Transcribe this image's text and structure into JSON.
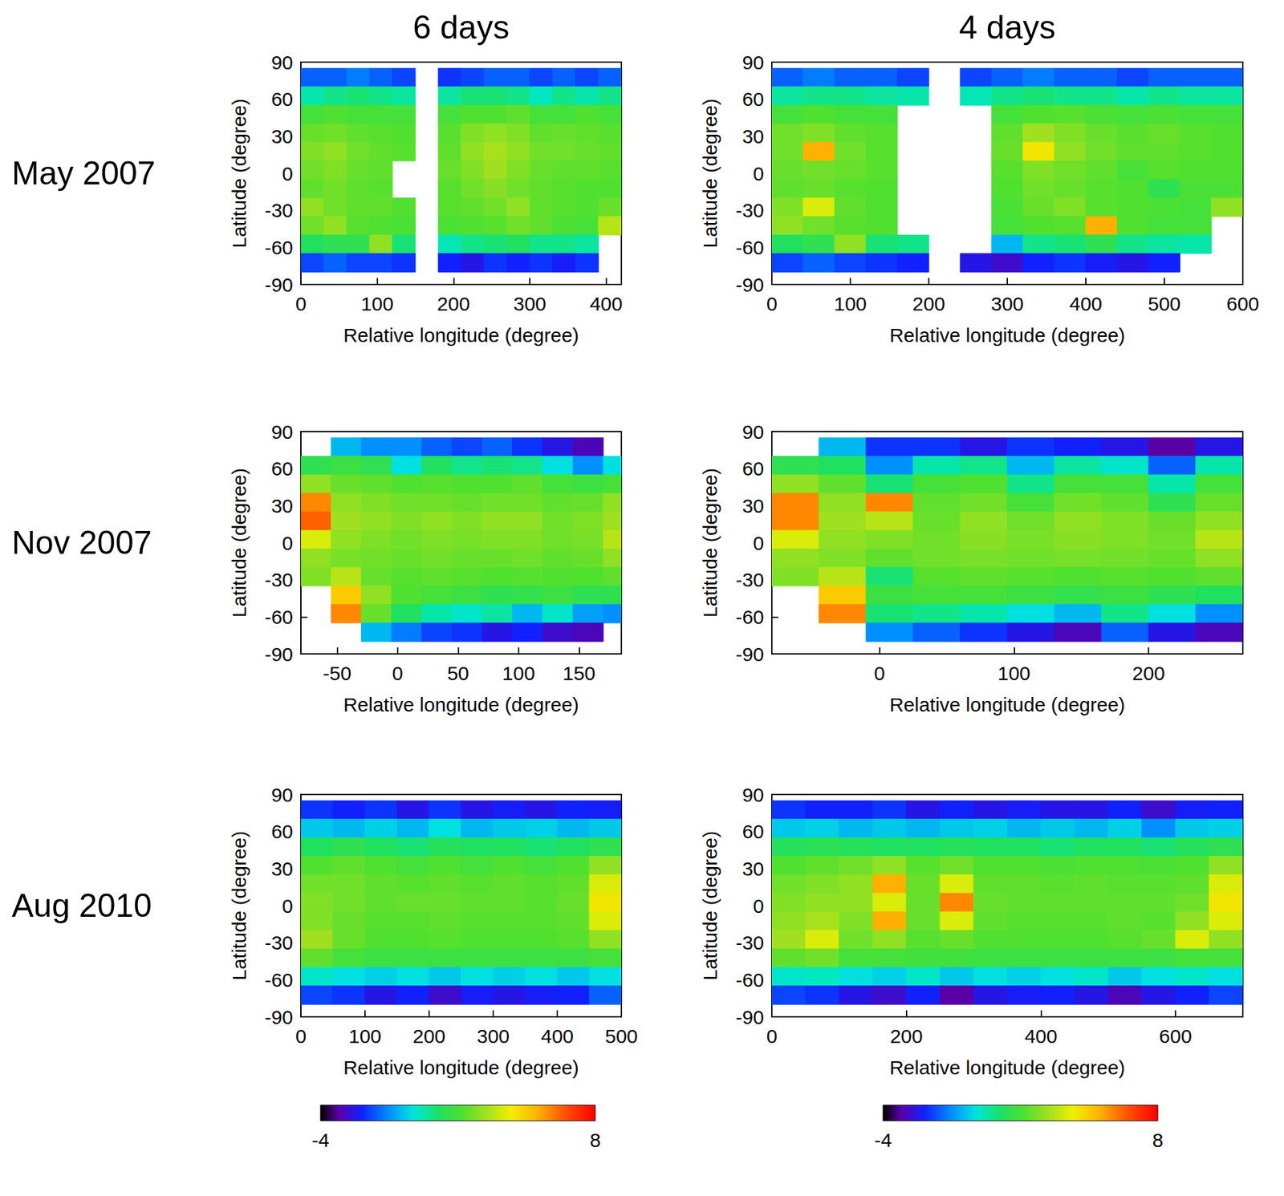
{
  "column_titles": [
    "6 days",
    "4 days"
  ],
  "row_titles": [
    "May 2007",
    "Nov 2007",
    "Aug 2010"
  ],
  "chart_data": [
    {
      "type": "heatmap",
      "xlabel": "Relative longitude (degree)",
      "ylabel": "Latitude (degree)",
      "grid": false,
      "xlim": [
        0,
        420
      ],
      "xticks": [
        0,
        100,
        200,
        300,
        400
      ],
      "ylim": [
        -90,
        90
      ],
      "yticks": [
        -90,
        -60,
        -30,
        0,
        30,
        60,
        90
      ],
      "x": [
        15,
        45,
        75,
        105,
        135,
        165,
        195,
        225,
        255,
        285,
        315,
        345,
        375,
        405
      ],
      "y": [
        77.5,
        62.5,
        47.5,
        32.5,
        17.5,
        2.5,
        -12.5,
        -27.5,
        -42.5,
        -57.5,
        -72.5
      ],
      "cells": [
        [
          -1.5,
          -1.5,
          -1.2,
          -1.5,
          -1.8,
          null,
          -2,
          -1.8,
          -1.5,
          -1.5,
          -1.8,
          -1.5,
          -1.8,
          -1.5
        ],
        [
          0.5,
          0.8,
          1,
          0.8,
          0.6,
          null,
          0.6,
          1,
          1,
          0.8,
          0.3,
          0.8,
          0.5,
          0.8
        ],
        [
          2,
          2.2,
          2,
          2,
          2,
          null,
          2,
          2.2,
          2.2,
          2.4,
          2,
          2,
          2.2,
          2
        ],
        [
          2.5,
          2.6,
          2.4,
          2.3,
          2.2,
          null,
          2.3,
          2.8,
          3,
          2.8,
          2.4,
          2.5,
          2.4,
          2.3
        ],
        [
          2.8,
          3,
          2.6,
          2.4,
          2.3,
          null,
          2.4,
          3,
          3.3,
          3,
          2.6,
          2.6,
          2.5,
          2.4
        ],
        [
          2.6,
          2.8,
          2.5,
          2.4,
          null,
          null,
          2.5,
          2.8,
          3.2,
          2.8,
          2.5,
          2.4,
          2.4,
          2.3
        ],
        [
          2.4,
          2.6,
          2.4,
          2.3,
          null,
          null,
          2.3,
          2.6,
          2.9,
          2.6,
          2.4,
          2.3,
          2.2,
          2.2
        ],
        [
          3,
          2.6,
          2.4,
          2.4,
          2.2,
          null,
          2.3,
          2.4,
          2.6,
          3,
          2.4,
          2.3,
          2.2,
          2.5
        ],
        [
          2.6,
          3,
          2.3,
          2.2,
          2.1,
          null,
          2.1,
          2.2,
          2.3,
          2.6,
          2.4,
          2.1,
          2,
          3.5
        ],
        [
          1.2,
          1.5,
          1.5,
          3,
          1,
          null,
          0.4,
          0.8,
          1,
          1.2,
          0.8,
          0.8,
          0.6,
          null
        ],
        [
          -1.8,
          -1.5,
          -1.8,
          -1.8,
          -2,
          null,
          -2.2,
          -2.5,
          -2,
          -2.2,
          -2,
          -2.3,
          -2,
          null
        ]
      ]
    },
    {
      "type": "heatmap",
      "xlabel": "Relative longitude (degree)",
      "ylabel": "Latitude (degree)",
      "grid": false,
      "xlim": [
        0,
        600
      ],
      "xticks": [
        0,
        100,
        200,
        300,
        400,
        500,
        600
      ],
      "ylim": [
        -90,
        90
      ],
      "yticks": [
        -90,
        -60,
        -30,
        0,
        30,
        60,
        90
      ],
      "x": [
        20,
        60,
        100,
        140,
        180,
        220,
        260,
        300,
        340,
        380,
        420,
        460,
        500,
        540,
        580
      ],
      "y": [
        77.5,
        62.5,
        47.5,
        32.5,
        17.5,
        2.5,
        -12.5,
        -27.5,
        -42.5,
        -57.5,
        -72.5
      ],
      "cells": [
        [
          -1.5,
          -1.2,
          -1.5,
          -1.5,
          -1.8,
          null,
          -1.8,
          -1.5,
          -1.2,
          -1.5,
          -1.5,
          -1.8,
          -1.5,
          -1.5,
          -1.5
        ],
        [
          0.6,
          0.8,
          0.8,
          0.6,
          0.5,
          null,
          0.4,
          0.8,
          1,
          0.8,
          0.8,
          0.5,
          0.8,
          0.6,
          0.6
        ],
        [
          2,
          2.2,
          2,
          2,
          null,
          null,
          null,
          2,
          2.2,
          2.3,
          2.1,
          2,
          2.1,
          2,
          2
        ],
        [
          2.6,
          2.8,
          2.4,
          2.3,
          null,
          null,
          null,
          2.4,
          3.2,
          2.8,
          2.5,
          2.3,
          2.5,
          2.3,
          2.2
        ],
        [
          2.6,
          5.5,
          2.6,
          2.3,
          null,
          null,
          null,
          2.5,
          4.5,
          3,
          2.6,
          2.4,
          2.4,
          2.3,
          2.2
        ],
        [
          2.5,
          2.6,
          2.5,
          2.3,
          null,
          null,
          null,
          2.3,
          2.8,
          2.6,
          2.4,
          2,
          2.3,
          2.2,
          2.2
        ],
        [
          2.4,
          2.5,
          2.3,
          2.2,
          null,
          null,
          null,
          2.2,
          2.6,
          2.5,
          2.3,
          2.2,
          1.5,
          2.1,
          2.1
        ],
        [
          2.8,
          4,
          2.4,
          2.2,
          null,
          null,
          null,
          2.1,
          2.5,
          2.8,
          2.3,
          2.2,
          2.1,
          2,
          3
        ],
        [
          3,
          2.6,
          2.3,
          2.2,
          null,
          null,
          null,
          2,
          2.2,
          2.3,
          5.5,
          2.2,
          2,
          2,
          null
        ],
        [
          1.2,
          1.5,
          3,
          1,
          0.8,
          null,
          null,
          -0.5,
          0.8,
          1,
          1.5,
          0.8,
          0.6,
          0.5,
          null
        ],
        [
          -1.8,
          -1.5,
          -1.8,
          -2,
          -2.2,
          null,
          -2.5,
          -2.8,
          -2.2,
          -2,
          -2.3,
          -2.5,
          -2.2,
          null,
          null
        ]
      ]
    },
    {
      "type": "heatmap",
      "xlabel": "Relative longitude (degree)",
      "ylabel": "Latitude (degree)",
      "grid": false,
      "xlim": [
        -80,
        185
      ],
      "xticks": [
        -50,
        0,
        50,
        100,
        150
      ],
      "ylim": [
        -90,
        90
      ],
      "yticks": [
        -90,
        -60,
        -30,
        0,
        30,
        60,
        90
      ],
      "x": [
        -67.5,
        -42.5,
        -17.5,
        7.5,
        32.5,
        57.5,
        82.5,
        107.5,
        132.5,
        157.5,
        182.5
      ],
      "y": [
        77.5,
        62.5,
        47.5,
        32.5,
        17.5,
        2.5,
        -12.5,
        -27.5,
        -42.5,
        -57.5,
        -72.5
      ],
      "cells": [
        [
          null,
          -0.5,
          -1,
          -1,
          -1.5,
          -1.8,
          -1.5,
          -2,
          -2.5,
          -3,
          null
        ],
        [
          1.5,
          1.8,
          1.5,
          0,
          1.2,
          0.8,
          1,
          0.8,
          0,
          -1,
          0
        ],
        [
          3,
          2.5,
          2.4,
          2.2,
          2.3,
          2.2,
          2.2,
          2.4,
          2,
          1.8,
          2
        ],
        [
          6,
          3,
          2.8,
          2.6,
          2.6,
          2.5,
          2.6,
          2.6,
          2.4,
          2.5,
          3
        ],
        [
          6.5,
          3.2,
          3,
          2.8,
          3,
          2.8,
          3,
          3,
          2.6,
          2.8,
          3.2
        ],
        [
          4,
          3,
          2.8,
          2.6,
          2.8,
          2.7,
          2.8,
          2.8,
          2.6,
          2.7,
          3.5
        ],
        [
          3,
          2.7,
          2.6,
          2.5,
          2.6,
          2.5,
          2.5,
          2.6,
          2.4,
          2.5,
          3
        ],
        [
          2.8,
          3.5,
          2.5,
          2.3,
          2.4,
          2.3,
          2.2,
          2.3,
          2.2,
          2.2,
          2.4
        ],
        [
          null,
          5,
          3,
          2.2,
          2,
          1.8,
          1.5,
          1.6,
          1.8,
          1.5,
          1.5
        ],
        [
          null,
          6,
          2.5,
          1.2,
          0.5,
          0.2,
          0.6,
          -0.5,
          0.2,
          -0.8,
          -1
        ],
        [
          null,
          null,
          -0.5,
          -1.2,
          -1.8,
          -2,
          -2.5,
          -2.2,
          -2.8,
          -3,
          null
        ]
      ]
    },
    {
      "type": "heatmap",
      "xlabel": "Relative longitude (degree)",
      "ylabel": "Latitude (degree)",
      "grid": false,
      "xlim": [
        -80,
        270
      ],
      "xticks": [
        0,
        100,
        200
      ],
      "ylim": [
        -90,
        90
      ],
      "yticks": [
        -90,
        -60,
        -30,
        0,
        30,
        60,
        90
      ],
      "x": [
        -62.5,
        -27.5,
        7.5,
        42.5,
        77.5,
        112.5,
        147.5,
        182.5,
        217.5,
        252.5
      ],
      "y": [
        77.5,
        62.5,
        47.5,
        32.5,
        17.5,
        2.5,
        -12.5,
        -27.5,
        -42.5,
        -57.5,
        -72.5
      ],
      "cells": [
        [
          null,
          -0.5,
          -2,
          -2,
          -2.5,
          -2,
          -2.2,
          -2.5,
          -3.2,
          -2.5
        ],
        [
          1.5,
          1.2,
          -1,
          0.5,
          0.8,
          -0.5,
          0.6,
          0.2,
          -1.5,
          0.5
        ],
        [
          3,
          2.4,
          1,
          2,
          2.2,
          0.8,
          2,
          2,
          0.5,
          2
        ],
        [
          6,
          3,
          6,
          2.4,
          2.6,
          2,
          2.6,
          2.4,
          1.5,
          2.5
        ],
        [
          6,
          3.2,
          3.5,
          2.5,
          3,
          2.6,
          3,
          2.8,
          2.5,
          3
        ],
        [
          4,
          3,
          2.8,
          2.6,
          2.9,
          2.7,
          2.9,
          2.8,
          2.6,
          3.5
        ],
        [
          3,
          2.8,
          2.4,
          2.6,
          2.7,
          2.6,
          2.7,
          2.6,
          2.5,
          3
        ],
        [
          2.8,
          3.5,
          1,
          2.3,
          2.4,
          2.3,
          2.2,
          2.3,
          2.2,
          2.4
        ],
        [
          null,
          5,
          1.8,
          2,
          2,
          1.8,
          1.6,
          1.8,
          1.5,
          1.2
        ],
        [
          null,
          6,
          1,
          0.8,
          0.5,
          0,
          -0.5,
          0.8,
          0,
          -1
        ],
        [
          null,
          null,
          -1,
          -1.5,
          -2,
          -2.5,
          -3,
          -1.5,
          -2.5,
          -3
        ]
      ]
    },
    {
      "type": "heatmap",
      "xlabel": "Relative longitude (degree)",
      "ylabel": "Latitude (degree)",
      "grid": false,
      "xlim": [
        0,
        500
      ],
      "xticks": [
        0,
        100,
        200,
        300,
        400,
        500
      ],
      "ylim": [
        -90,
        90
      ],
      "yticks": [
        -90,
        -60,
        -30,
        0,
        30,
        60,
        90
      ],
      "x": [
        25,
        75,
        125,
        175,
        225,
        275,
        325,
        375,
        425,
        475
      ],
      "y": [
        77.5,
        62.5,
        47.5,
        32.5,
        17.5,
        2.5,
        -12.5,
        -27.5,
        -42.5,
        -57.5,
        -72.5
      ],
      "cells": [
        [
          -2,
          -2.2,
          -2,
          -2.5,
          -2,
          -2.5,
          -2.3,
          -2.5,
          -2.2,
          -2.3
        ],
        [
          -0.3,
          -0.5,
          -0.2,
          -0.5,
          0,
          -0.5,
          -0.3,
          -0.2,
          -0.5,
          -0.3
        ],
        [
          1.2,
          1.5,
          1.2,
          1,
          1.3,
          1.2,
          1.2,
          1,
          1.2,
          1.5
        ],
        [
          2.2,
          2.4,
          2.2,
          2,
          2.2,
          2,
          2.2,
          2,
          2.2,
          3
        ],
        [
          2.6,
          2.6,
          2.4,
          2.3,
          2.4,
          2.3,
          2.4,
          2.3,
          2.4,
          4
        ],
        [
          2.8,
          2.6,
          2.4,
          2.5,
          2.5,
          2.4,
          2.4,
          2.3,
          2.5,
          4.5
        ],
        [
          2.8,
          2.5,
          2.3,
          2.3,
          2.4,
          2.3,
          2.3,
          2.3,
          2.4,
          4
        ],
        [
          3.2,
          2.5,
          2.2,
          2.2,
          2.3,
          2.2,
          2.2,
          2.2,
          2.3,
          3
        ],
        [
          2.4,
          2,
          1.8,
          1.8,
          1.8,
          1.8,
          1.8,
          1.8,
          1.8,
          2
        ],
        [
          0.2,
          0,
          -0.2,
          0,
          -0.3,
          0,
          -0.2,
          0,
          -0.3,
          0
        ],
        [
          -1.8,
          -2,
          -2.5,
          -2.2,
          -2.8,
          -2.3,
          -2.5,
          -2.3,
          -2.2,
          -1.5
        ]
      ],
      "colorbar": {
        "range": [
          -4,
          8
        ],
        "ticks": [
          -4,
          8
        ]
      }
    },
    {
      "type": "heatmap",
      "xlabel": "Relative longitude (degree)",
      "ylabel": "Latitude (degree)",
      "grid": false,
      "xlim": [
        0,
        700
      ],
      "xticks": [
        0,
        200,
        400,
        600
      ],
      "ylim": [
        -90,
        90
      ],
      "yticks": [
        -90,
        -60,
        -30,
        0,
        30,
        60,
        90
      ],
      "x": [
        25,
        75,
        125,
        175,
        225,
        275,
        325,
        375,
        425,
        475,
        525,
        575,
        625,
        675
      ],
      "y": [
        77.5,
        62.5,
        47.5,
        32.5,
        17.5,
        2.5,
        -12.5,
        -27.5,
        -42.5,
        -57.5,
        -72.5
      ],
      "cells": [
        [
          -2,
          -2.2,
          -2.2,
          -2,
          -2.5,
          -2.2,
          -2.5,
          -2.3,
          -2.5,
          -2.5,
          -2.2,
          -2.8,
          -2.3,
          -2.2
        ],
        [
          -0.3,
          -0.2,
          -0.5,
          -0.3,
          -0.5,
          -0.3,
          -0.2,
          -0.5,
          -0.3,
          -0.5,
          -0.2,
          -1,
          -0.3,
          -0.2
        ],
        [
          1.3,
          1.4,
          1.3,
          1.2,
          1.2,
          1.3,
          1.2,
          1.2,
          1,
          1.2,
          1.2,
          1,
          1.3,
          1.5
        ],
        [
          2.2,
          2.4,
          2.6,
          3,
          2.3,
          2.6,
          2.2,
          2.2,
          2.1,
          2.2,
          2.2,
          2.1,
          2.2,
          3
        ],
        [
          2.6,
          2.8,
          3,
          5.5,
          2.5,
          4,
          2.4,
          2.4,
          2.3,
          2.4,
          2.3,
          2.3,
          2.4,
          4
        ],
        [
          2.8,
          3,
          3,
          4,
          2.5,
          6,
          2.5,
          2.4,
          2.4,
          2.4,
          2.4,
          2.4,
          2.6,
          4.5
        ],
        [
          3,
          3.3,
          2.8,
          5.5,
          2.5,
          4,
          2.4,
          2.3,
          2.3,
          2.3,
          2.4,
          2.3,
          3,
          4
        ],
        [
          3.2,
          4,
          2.6,
          3,
          2.3,
          2.5,
          2.2,
          2.2,
          2.2,
          2.2,
          2.3,
          2.5,
          4,
          3
        ],
        [
          2.4,
          2.6,
          2,
          2,
          1.9,
          1.9,
          1.8,
          1.8,
          1.8,
          1.8,
          1.8,
          1.8,
          2,
          2
        ],
        [
          0.2,
          0.3,
          0,
          -0.2,
          0.2,
          -0.3,
          0,
          -0.2,
          0,
          0.2,
          -0.3,
          0,
          0.2,
          0
        ],
        [
          -1.8,
          -2,
          -2.5,
          -2.8,
          -2.2,
          -3.2,
          -2.5,
          -2.3,
          -2.2,
          -2.5,
          -3,
          -2.5,
          -2.2,
          -1.8
        ]
      ],
      "colorbar": {
        "range": [
          -4,
          8
        ],
        "ticks": [
          -4,
          8
        ]
      }
    }
  ]
}
